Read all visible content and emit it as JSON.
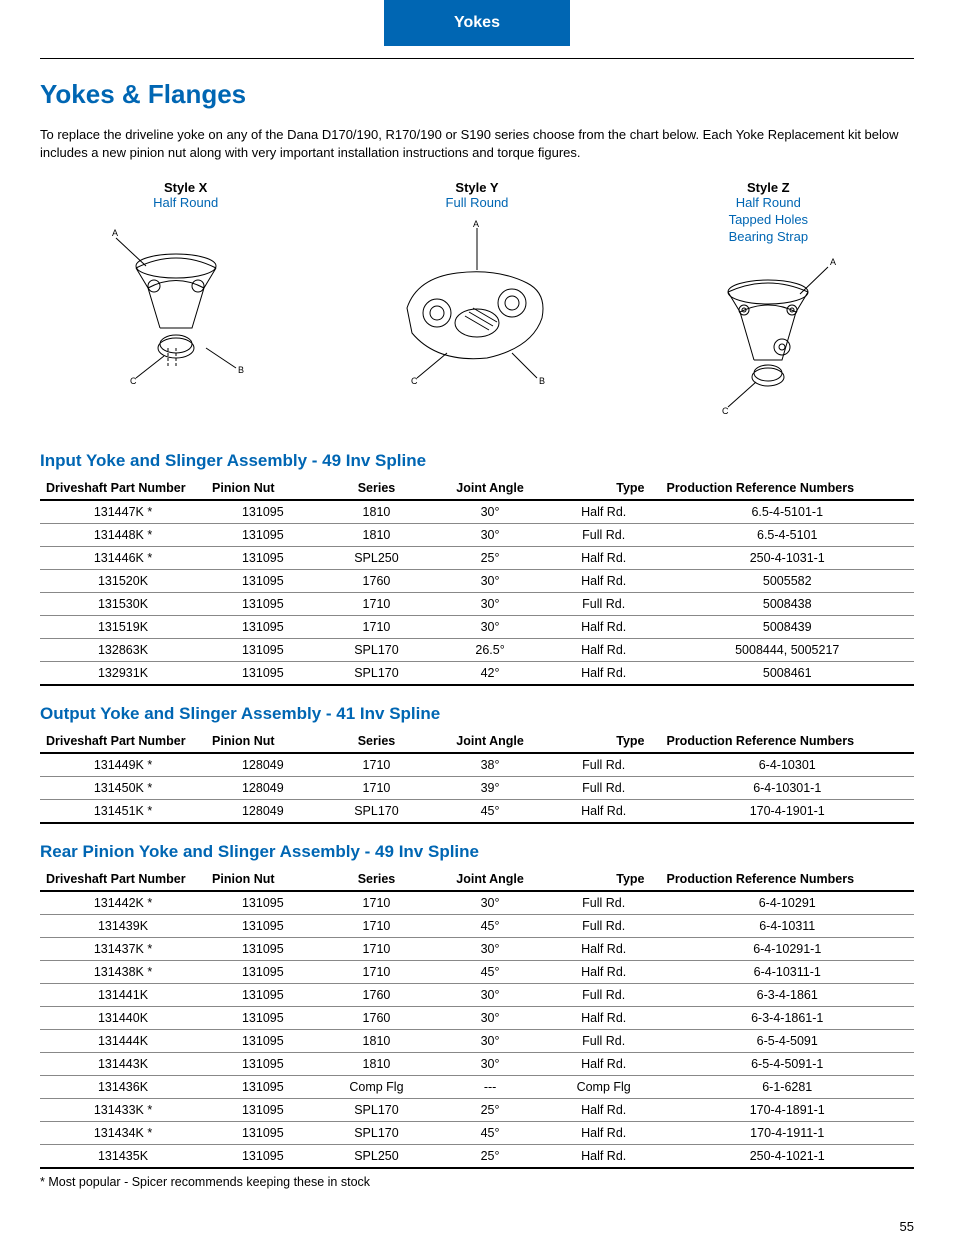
{
  "tab_label": "Yokes",
  "page_title": "Yokes & Flanges",
  "intro_text": "To replace the driveline yoke on any of the Dana D170/190, R170/190 or S190 series choose from the chart below. Each Yoke Replacement kit below includes a new pinion nut along with very important installation instructions and torque figures.",
  "styles": [
    {
      "title": "Style X",
      "sub": "Half Round"
    },
    {
      "title": "Style Y",
      "sub": "Full Round"
    },
    {
      "title": "Style Z",
      "sub": "Half Round\nTapped Holes\nBearing Strap"
    }
  ],
  "columns": {
    "part": "Driveshaft Part Number",
    "nut": "Pinion Nut",
    "series": "Series",
    "angle": "Joint Angle",
    "type": "Type",
    "ref": "Production Reference Numbers"
  },
  "sections": [
    {
      "title": "Input Yoke and Slinger Assembly - 49 Inv Spline",
      "rows": [
        [
          "131447K *",
          "131095",
          "1810",
          "30°",
          "Half Rd.",
          "6.5-4-5101-1"
        ],
        [
          "131448K *",
          "131095",
          "1810",
          "30°",
          "Full Rd.",
          "6.5-4-5101"
        ],
        [
          "131446K *",
          "131095",
          "SPL250",
          "25°",
          "Half Rd.",
          "250-4-1031-1"
        ],
        [
          "131520K",
          "131095",
          "1760",
          "30°",
          "Half Rd.",
          "5005582"
        ],
        [
          "131530K",
          "131095",
          "1710",
          "30°",
          "Full Rd.",
          "5008438"
        ],
        [
          "131519K",
          "131095",
          "1710",
          "30°",
          "Half Rd.",
          "5008439"
        ],
        [
          "132863K",
          "131095",
          "SPL170",
          "26.5°",
          "Half Rd.",
          "5008444, 5005217"
        ],
        [
          "132931K",
          "131095",
          "SPL170",
          "42°",
          "Half Rd.",
          "5008461"
        ]
      ]
    },
    {
      "title": "Output Yoke and Slinger Assembly - 41 Inv Spline",
      "rows": [
        [
          "131449K *",
          "128049",
          "1710",
          "38°",
          "Full Rd.",
          "6-4-10301"
        ],
        [
          "131450K *",
          "128049",
          "1710",
          "39°",
          "Full Rd.",
          "6-4-10301-1"
        ],
        [
          "131451K *",
          "128049",
          "SPL170",
          "45°",
          "Half Rd.",
          "170-4-1901-1"
        ]
      ]
    },
    {
      "title": "Rear Pinion Yoke and Slinger Assembly - 49 Inv Spline",
      "rows": [
        [
          "131442K *",
          "131095",
          "1710",
          "30°",
          "Full Rd.",
          "6-4-10291"
        ],
        [
          "131439K",
          "131095",
          "1710",
          "45°",
          "Full Rd.",
          "6-4-10311"
        ],
        [
          "131437K *",
          "131095",
          "1710",
          "30°",
          "Half Rd.",
          "6-4-10291-1"
        ],
        [
          "131438K *",
          "131095",
          "1710",
          "45°",
          "Half Rd.",
          "6-4-10311-1"
        ],
        [
          "131441K",
          "131095",
          "1760",
          "30°",
          "Full Rd.",
          "6-3-4-1861"
        ],
        [
          "131440K",
          "131095",
          "1760",
          "30°",
          "Half Rd.",
          "6-3-4-1861-1"
        ],
        [
          "131444K",
          "131095",
          "1810",
          "30°",
          "Full Rd.",
          "6-5-4-5091"
        ],
        [
          "131443K",
          "131095",
          "1810",
          "30°",
          "Half Rd.",
          "6-5-4-5091-1"
        ],
        [
          "131436K",
          "131095",
          "Comp Flg",
          "---",
          "Comp Flg",
          "6-1-6281"
        ],
        [
          "131433K *",
          "131095",
          "SPL170",
          "25°",
          "Half Rd.",
          "170-4-1891-1"
        ],
        [
          "131434K *",
          "131095",
          "SPL170",
          "45°",
          "Half Rd.",
          "170-4-1911-1"
        ],
        [
          "131435K",
          "131095",
          "SPL250",
          "25°",
          "Half Rd.",
          "250-4-1021-1"
        ]
      ]
    }
  ],
  "footnote": "* Most popular - Spicer recommends keeping these in stock",
  "page_number": "55",
  "colors": {
    "brand_blue": "#0066b3",
    "tab_blue": "#0066b3",
    "text": "#000000",
    "row_border": "#888888"
  }
}
